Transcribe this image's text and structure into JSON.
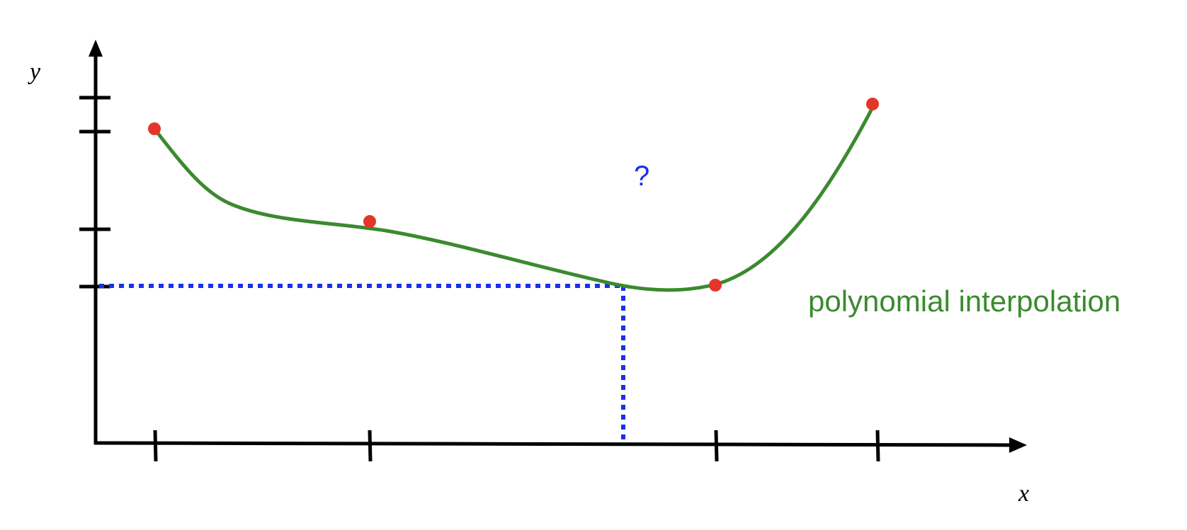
{
  "diagram": {
    "axes": {
      "x_label": "x",
      "y_label": "y"
    },
    "question_mark": "?",
    "curve_label": "polynomial interpolation",
    "colors": {
      "axis": "#000000",
      "curve": "#3b8a2f",
      "points": "#e53529",
      "guide": "#1a2ff0",
      "question": "#1a2ff0",
      "curve_label": "#3b8a2f"
    }
  }
}
